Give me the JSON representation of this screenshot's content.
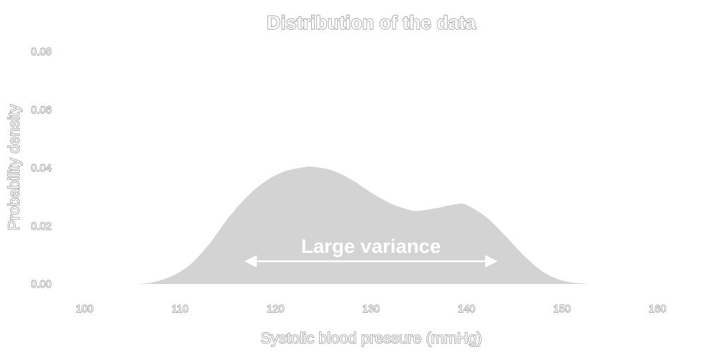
{
  "chart_data": {
    "type": "area",
    "title": "Distribution of the data",
    "xlabel": "Systolic blood pressure (mmHg)",
    "ylabel": "Probability density",
    "xlim": [
      97,
      163
    ],
    "ylim": [
      0,
      0.08
    ],
    "x_ticks": [
      100,
      110,
      120,
      130,
      140,
      150,
      160
    ],
    "y_ticks": [
      0.0,
      0.02,
      0.04,
      0.06,
      0.08
    ],
    "y_tick_labels": [
      "0.00",
      "0.02",
      "0.04",
      "0.06",
      "0.08"
    ],
    "grid": false,
    "fill_color": "#d3d3d3",
    "curve": {
      "x": [
        105.5,
        107,
        109,
        111,
        113,
        115,
        117,
        119,
        121,
        123,
        124,
        126,
        128,
        130,
        132,
        134,
        135,
        137,
        139,
        140,
        142,
        144,
        146,
        148,
        150,
        152,
        154
      ],
      "y": [
        0.0,
        0.0005,
        0.0025,
        0.0065,
        0.0135,
        0.0225,
        0.03,
        0.0355,
        0.0388,
        0.0402,
        0.0403,
        0.039,
        0.0358,
        0.0315,
        0.0278,
        0.0255,
        0.0252,
        0.0262,
        0.0275,
        0.0272,
        0.0232,
        0.0168,
        0.0098,
        0.0042,
        0.0012,
        0.0002,
        0.0
      ]
    },
    "annotation": {
      "text": "Large variance",
      "x_start": 117,
      "x_end": 143,
      "y": 0.0078,
      "color": "#ffffff"
    }
  }
}
